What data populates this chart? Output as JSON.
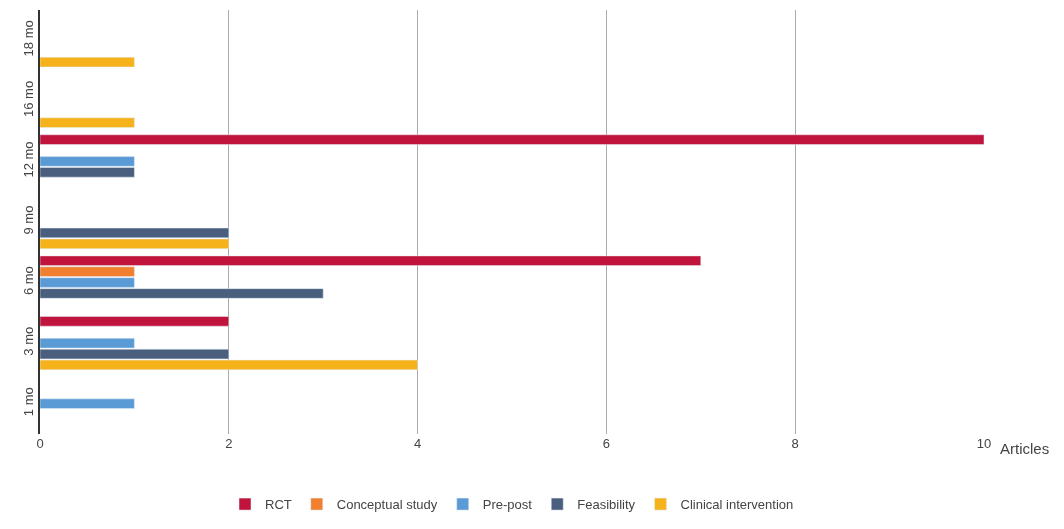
{
  "chart_data": {
    "type": "bar",
    "orientation": "horizontal",
    "xlabel": "Articles",
    "categories": [
      "18 mo",
      "16 mo",
      "12 mo",
      "9 mo",
      "6 mo",
      "3 mo",
      "1 mo"
    ],
    "series": [
      {
        "name": "RCT",
        "color": "#c0143c",
        "values": [
          null,
          null,
          10,
          null,
          7,
          2,
          null
        ]
      },
      {
        "name": "Conceptual study",
        "color": "#f07f30",
        "values": [
          null,
          null,
          null,
          null,
          1,
          null,
          null
        ]
      },
      {
        "name": "Pre-post",
        "color": "#5b9bd5",
        "values": [
          null,
          null,
          1,
          null,
          1,
          1,
          1
        ]
      },
      {
        "name": "Feasibility",
        "color": "#4a5f7e",
        "values": [
          null,
          null,
          1,
          2,
          3,
          2,
          null
        ]
      },
      {
        "name": "Clinical intervention",
        "color": "#f5b21b",
        "values": [
          1,
          1,
          null,
          2,
          null,
          4,
          null
        ]
      }
    ],
    "xlim": [
      0,
      10
    ],
    "xticks": [
      0,
      2,
      4,
      6,
      8,
      10
    ],
    "grid": "x",
    "legend": "bottom"
  }
}
